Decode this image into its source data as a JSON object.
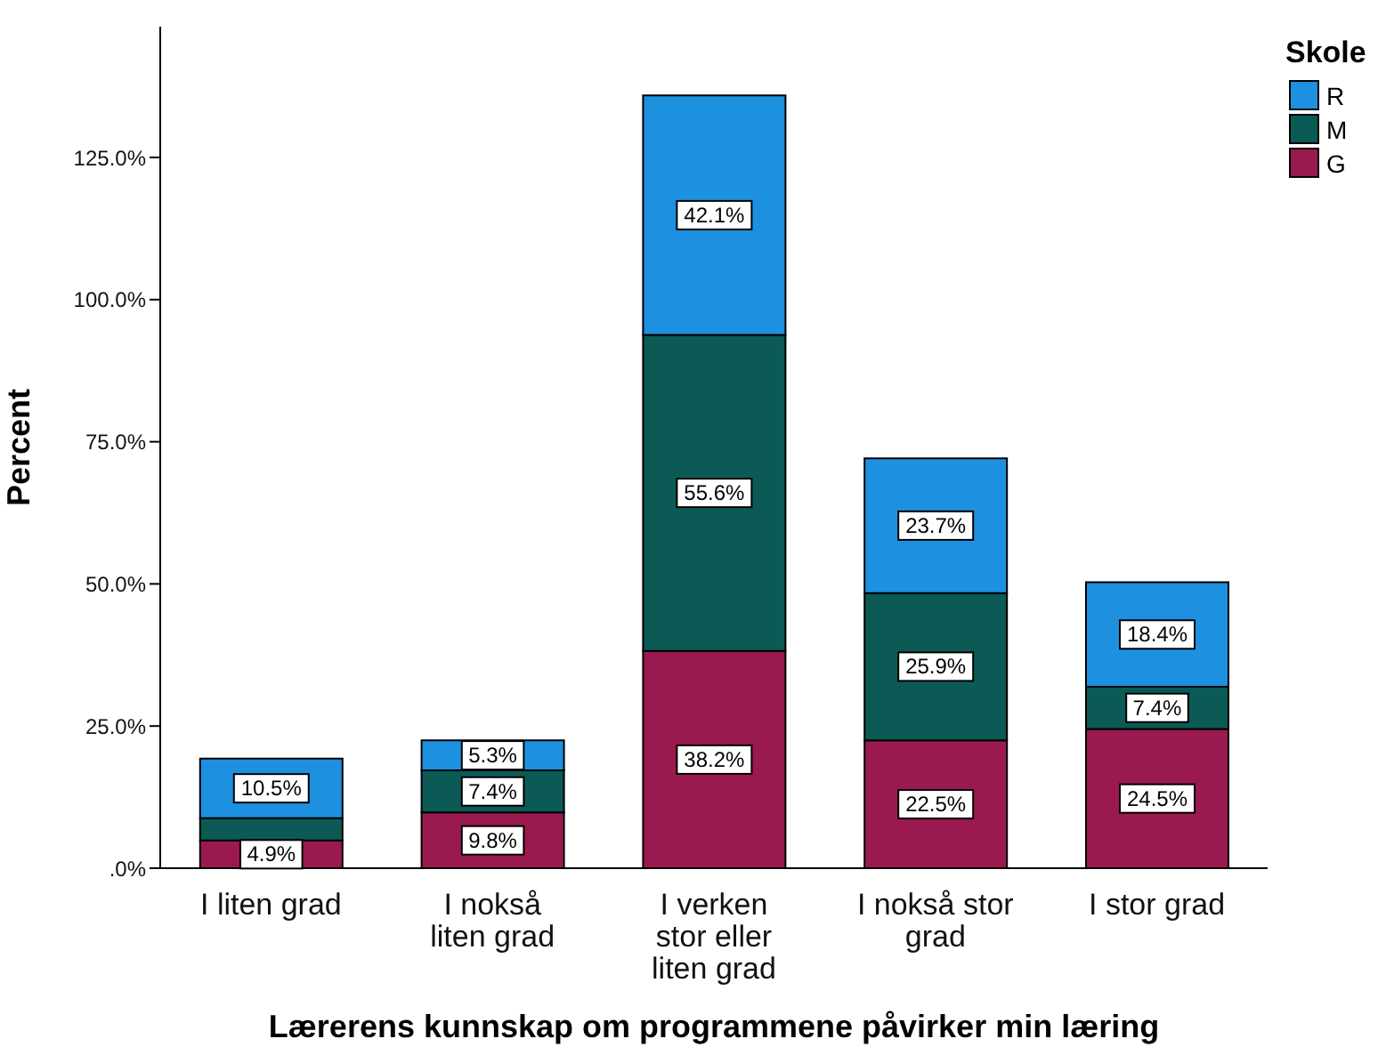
{
  "chart_data": {
    "type": "bar",
    "stacked": true,
    "xlabel": "Lærerens kunnskap om programmene påvirker min læring",
    "ylabel": "Percent",
    "legend_title": "Skole",
    "legend": "top right",
    "categories": [
      "I liten grad",
      "I nokså liten grad",
      "I verken stor eller liten grad",
      "I nokså stor grad",
      "I stor grad"
    ],
    "ylim": [
      0,
      148
    ],
    "yticks": [
      {
        "value": 0,
        "label": ".0%"
      },
      {
        "value": 25,
        "label": "25.0%"
      },
      {
        "value": 50,
        "label": "50.0%"
      },
      {
        "value": 75,
        "label": "75.0%"
      },
      {
        "value": 100,
        "label": "100.0%"
      },
      {
        "value": 125,
        "label": "125.0%"
      }
    ],
    "series": [
      {
        "name": "G",
        "color": "#9a1a50",
        "values": [
          4.9,
          9.8,
          38.2,
          22.5,
          24.5
        ],
        "value_labels": [
          "4.9%",
          "9.8%",
          "38.2%",
          "22.5%",
          "24.5%"
        ]
      },
      {
        "name": "M",
        "color": "#0b5a55",
        "values": [
          3.9,
          7.4,
          55.6,
          25.9,
          7.4
        ],
        "value_labels": [
          null,
          "7.4%",
          "55.6%",
          "25.9%",
          "7.4%"
        ]
      },
      {
        "name": "R",
        "color": "#1e90e0",
        "values": [
          10.5,
          5.3,
          42.1,
          23.7,
          18.4
        ],
        "value_labels": [
          "10.5%",
          "5.3%",
          "42.1%",
          "23.7%",
          "18.4%"
        ]
      }
    ]
  }
}
